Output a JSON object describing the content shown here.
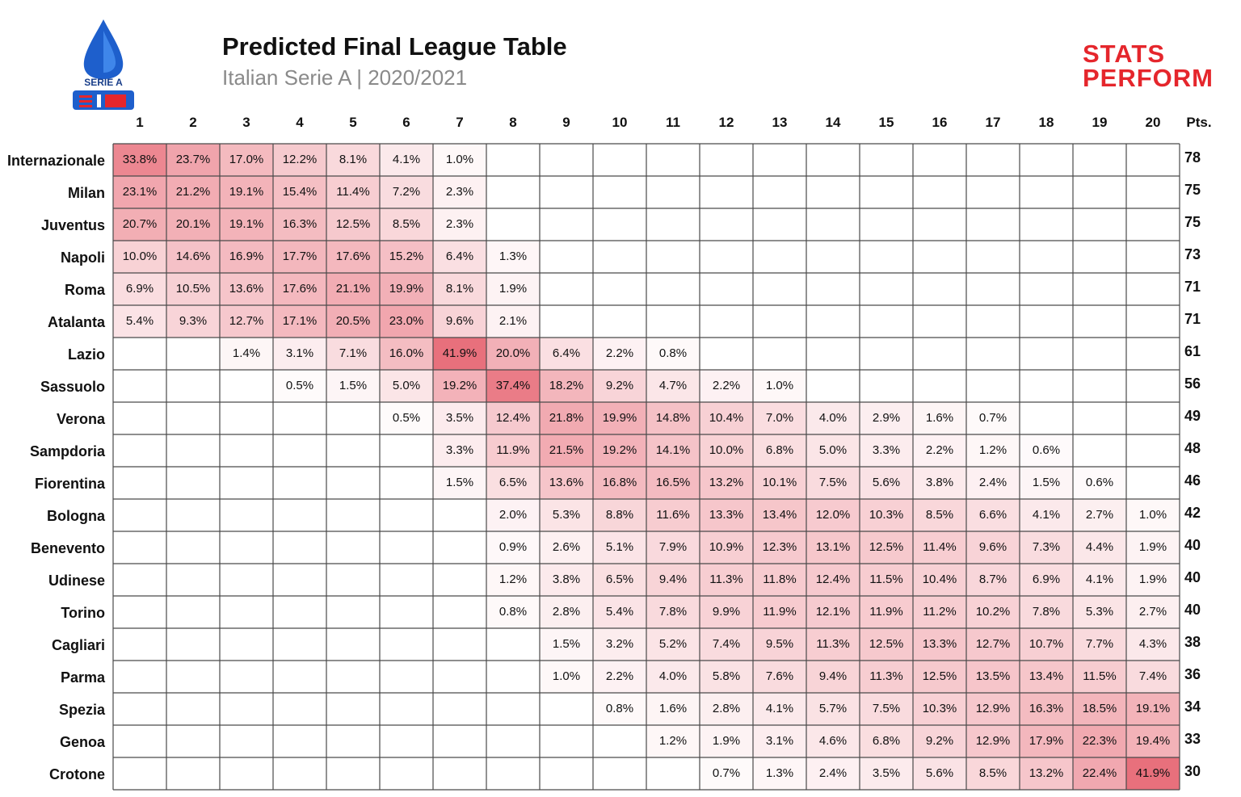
{
  "header": {
    "title": "Predicted Final League Table",
    "subtitle": "Italian Serie A | 2020/2021",
    "league_logo_text": "SERIE A",
    "brand_line1": "STATS",
    "brand_line2": "PERFORM"
  },
  "colors": {
    "heat_max": "#e8707c",
    "heat_min": "#ffffff",
    "grid": "#4a4a4a",
    "brand": "#e5262c",
    "logo_blue": "#1e5fcc"
  },
  "chart_data": {
    "type": "heatmap",
    "title": "Predicted Final League Table",
    "subtitle": "Italian Serie A | 2020/2021",
    "columns": [
      "1",
      "2",
      "3",
      "4",
      "5",
      "6",
      "7",
      "8",
      "9",
      "10",
      "11",
      "12",
      "13",
      "14",
      "15",
      "16",
      "17",
      "18",
      "19",
      "20"
    ],
    "points_label": "Pts.",
    "unit": "%",
    "rows": [
      {
        "team": "Internazionale",
        "pts": 78,
        "values": [
          33.8,
          23.7,
          17.0,
          12.2,
          8.1,
          4.1,
          1.0,
          null,
          null,
          null,
          null,
          null,
          null,
          null,
          null,
          null,
          null,
          null,
          null,
          null
        ]
      },
      {
        "team": "Milan",
        "pts": 75,
        "values": [
          23.1,
          21.2,
          19.1,
          15.4,
          11.4,
          7.2,
          2.3,
          null,
          null,
          null,
          null,
          null,
          null,
          null,
          null,
          null,
          null,
          null,
          null,
          null
        ]
      },
      {
        "team": "Juventus",
        "pts": 75,
        "values": [
          20.7,
          20.1,
          19.1,
          16.3,
          12.5,
          8.5,
          2.3,
          null,
          null,
          null,
          null,
          null,
          null,
          null,
          null,
          null,
          null,
          null,
          null,
          null
        ]
      },
      {
        "team": "Napoli",
        "pts": 73,
        "values": [
          10.0,
          14.6,
          16.9,
          17.7,
          17.6,
          15.2,
          6.4,
          1.3,
          null,
          null,
          null,
          null,
          null,
          null,
          null,
          null,
          null,
          null,
          null,
          null
        ]
      },
      {
        "team": "Roma",
        "pts": 71,
        "values": [
          6.9,
          10.5,
          13.6,
          17.6,
          21.1,
          19.9,
          8.1,
          1.9,
          null,
          null,
          null,
          null,
          null,
          null,
          null,
          null,
          null,
          null,
          null,
          null
        ]
      },
      {
        "team": "Atalanta",
        "pts": 71,
        "values": [
          5.4,
          9.3,
          12.7,
          17.1,
          20.5,
          23.0,
          9.6,
          2.1,
          null,
          null,
          null,
          null,
          null,
          null,
          null,
          null,
          null,
          null,
          null,
          null
        ]
      },
      {
        "team": "Lazio",
        "pts": 61,
        "values": [
          null,
          null,
          1.4,
          3.1,
          7.1,
          16.0,
          41.9,
          20.0,
          6.4,
          2.2,
          0.8,
          null,
          null,
          null,
          null,
          null,
          null,
          null,
          null,
          null
        ]
      },
      {
        "team": "Sassuolo",
        "pts": 56,
        "values": [
          null,
          null,
          null,
          0.5,
          1.5,
          5.0,
          19.2,
          37.4,
          18.2,
          9.2,
          4.7,
          2.2,
          1.0,
          null,
          null,
          null,
          null,
          null,
          null,
          null
        ]
      },
      {
        "team": "Verona",
        "pts": 49,
        "values": [
          null,
          null,
          null,
          null,
          null,
          0.5,
          3.5,
          12.4,
          21.8,
          19.9,
          14.8,
          10.4,
          7.0,
          4.0,
          2.9,
          1.6,
          0.7,
          null,
          null,
          null
        ]
      },
      {
        "team": "Sampdoria",
        "pts": 48,
        "values": [
          null,
          null,
          null,
          null,
          null,
          null,
          3.3,
          11.9,
          21.5,
          19.2,
          14.1,
          10.0,
          6.8,
          5.0,
          3.3,
          2.2,
          1.2,
          0.6,
          null,
          null
        ]
      },
      {
        "team": "Fiorentina",
        "pts": 46,
        "values": [
          null,
          null,
          null,
          null,
          null,
          null,
          1.5,
          6.5,
          13.6,
          16.8,
          16.5,
          13.2,
          10.1,
          7.5,
          5.6,
          3.8,
          2.4,
          1.5,
          0.6,
          null
        ]
      },
      {
        "team": "Bologna",
        "pts": 42,
        "values": [
          null,
          null,
          null,
          null,
          null,
          null,
          null,
          2.0,
          5.3,
          8.8,
          11.6,
          13.3,
          13.4,
          12.0,
          10.3,
          8.5,
          6.6,
          4.1,
          2.7,
          1.0
        ]
      },
      {
        "team": "Benevento",
        "pts": 40,
        "values": [
          null,
          null,
          null,
          null,
          null,
          null,
          null,
          0.9,
          2.6,
          5.1,
          7.9,
          10.9,
          12.3,
          13.1,
          12.5,
          11.4,
          9.6,
          7.3,
          4.4,
          1.9
        ]
      },
      {
        "team": "Udinese",
        "pts": 40,
        "values": [
          null,
          null,
          null,
          null,
          null,
          null,
          null,
          1.2,
          3.8,
          6.5,
          9.4,
          11.3,
          11.8,
          12.4,
          11.5,
          10.4,
          8.7,
          6.9,
          4.1,
          1.9
        ]
      },
      {
        "team": "Torino",
        "pts": 40,
        "values": [
          null,
          null,
          null,
          null,
          null,
          null,
          null,
          0.8,
          2.8,
          5.4,
          7.8,
          9.9,
          11.9,
          12.1,
          11.9,
          11.2,
          10.2,
          7.8,
          5.3,
          2.7
        ]
      },
      {
        "team": "Cagliari",
        "pts": 38,
        "values": [
          null,
          null,
          null,
          null,
          null,
          null,
          null,
          null,
          1.5,
          3.2,
          5.2,
          7.4,
          9.5,
          11.3,
          12.5,
          13.3,
          12.7,
          10.7,
          7.7,
          4.3
        ]
      },
      {
        "team": "Parma",
        "pts": 36,
        "values": [
          null,
          null,
          null,
          null,
          null,
          null,
          null,
          null,
          1.0,
          2.2,
          4.0,
          5.8,
          7.6,
          9.4,
          11.3,
          12.5,
          13.5,
          13.4,
          11.5,
          7.4
        ]
      },
      {
        "team": "Spezia",
        "pts": 34,
        "values": [
          null,
          null,
          null,
          null,
          null,
          null,
          null,
          null,
          null,
          0.8,
          1.6,
          2.8,
          4.1,
          5.7,
          7.5,
          10.3,
          12.9,
          16.3,
          18.5,
          19.1
        ]
      },
      {
        "team": "Genoa",
        "pts": 33,
        "values": [
          null,
          null,
          null,
          null,
          null,
          null,
          null,
          null,
          null,
          null,
          1.2,
          1.9,
          3.1,
          4.6,
          6.8,
          9.2,
          12.9,
          17.9,
          22.3,
          19.4
        ]
      },
      {
        "team": "Crotone",
        "pts": 30,
        "values": [
          null,
          null,
          null,
          null,
          null,
          null,
          null,
          null,
          null,
          null,
          null,
          0.7,
          1.3,
          2.4,
          3.5,
          5.6,
          8.5,
          13.2,
          22.4,
          41.9
        ]
      }
    ]
  }
}
